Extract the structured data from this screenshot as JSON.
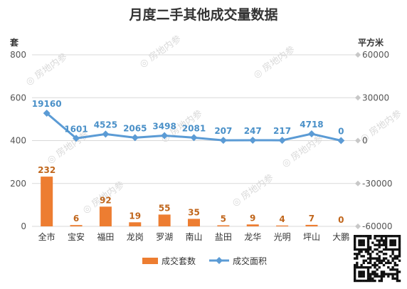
{
  "chart_data": {
    "type": "bar",
    "title": "月度二手其他成交量数据",
    "y_left_unit": "套",
    "y_right_unit": "平方米",
    "categories": [
      "全市",
      "宝安",
      "福田",
      "龙岗",
      "罗湖",
      "南山",
      "盐田",
      "龙华",
      "光明",
      "坪山",
      "大鹏"
    ],
    "series": [
      {
        "name": "成交套数",
        "type": "bar",
        "axis": "left",
        "color": "#ed7d31",
        "values": [
          232,
          6,
          92,
          19,
          55,
          35,
          5,
          9,
          4,
          7,
          0
        ]
      },
      {
        "name": "成交面积",
        "type": "line",
        "axis": "right",
        "color": "#5b9bd5",
        "values": [
          19160,
          1601,
          4525,
          2065,
          3498,
          2081,
          207,
          247,
          217,
          4718,
          0
        ]
      }
    ],
    "y_left_ticks": [
      "0",
      "200",
      "400",
      "600",
      "800"
    ],
    "y_right_ticks": [
      "-60000",
      "-30000",
      "0",
      "30000",
      "60000"
    ],
    "ylim_left": [
      0,
      800
    ],
    "ylim_right": [
      -60000,
      60000
    ],
    "grid": true,
    "legend_position": "bottom",
    "watermark": "房地内参"
  }
}
